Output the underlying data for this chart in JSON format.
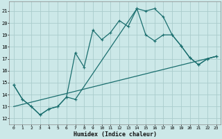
{
  "xlabel": "Humidex (Indice chaleur)",
  "bg_color": "#cce8e8",
  "line_color": "#1a6e6e",
  "grid_color": "#aacccc",
  "xlim": [
    -0.5,
    23.5
  ],
  "ylim": [
    11.5,
    21.8
  ],
  "yticks": [
    12,
    13,
    14,
    15,
    16,
    17,
    18,
    19,
    20,
    21
  ],
  "xticks": [
    0,
    1,
    2,
    3,
    4,
    5,
    6,
    7,
    8,
    9,
    10,
    11,
    12,
    13,
    14,
    15,
    16,
    17,
    18,
    19,
    20,
    21,
    22,
    23
  ],
  "line1_x": [
    0,
    1,
    2,
    3,
    4,
    5,
    6,
    7,
    8,
    9,
    10,
    11,
    12,
    13,
    14,
    15,
    16,
    17,
    18,
    19,
    20,
    21,
    22,
    23
  ],
  "line1_y": [
    14.8,
    13.6,
    13.0,
    12.3,
    12.8,
    13.0,
    13.8,
    17.5,
    16.3,
    19.4,
    18.6,
    19.2,
    20.2,
    19.7,
    21.2,
    21.0,
    21.2,
    20.5,
    19.0,
    18.1,
    17.1,
    16.5,
    17.0,
    17.2
  ],
  "line2_x": [
    0,
    1,
    2,
    3,
    4,
    5,
    6,
    7,
    14,
    15,
    16,
    17,
    18,
    19,
    20,
    21,
    22,
    23
  ],
  "line2_y": [
    14.8,
    13.6,
    13.0,
    12.3,
    12.8,
    13.0,
    13.8,
    13.6,
    21.2,
    19.0,
    18.5,
    19.0,
    19.0,
    18.1,
    17.1,
    16.5,
    17.0,
    17.2
  ],
  "line3_x": [
    0,
    23
  ],
  "line3_y": [
    13.0,
    17.2
  ]
}
